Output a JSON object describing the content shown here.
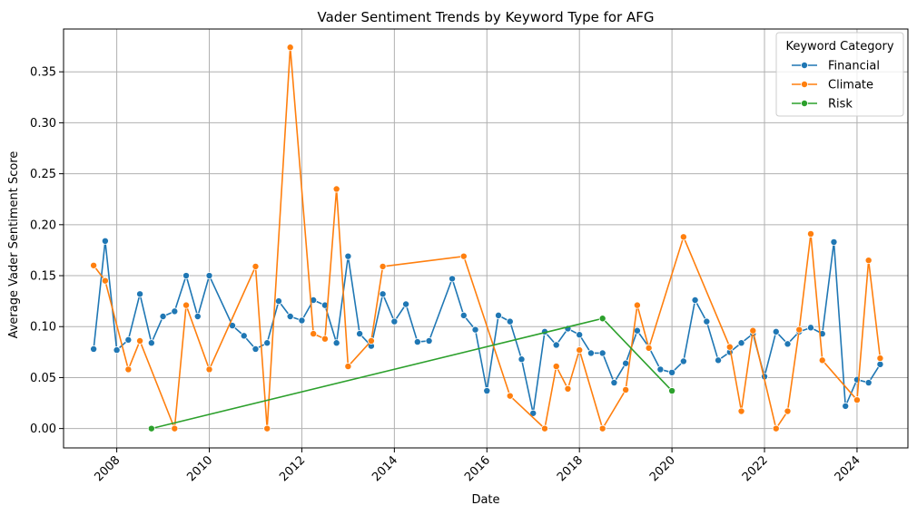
{
  "chart_data": {
    "type": "line",
    "title": "Vader Sentiment Trends by Keyword Type for AFG",
    "xlabel": "Date",
    "ylabel": "Average Vader Sentiment Score",
    "xlim": [
      2006.85,
      2025.1
    ],
    "ylim": [
      -0.019,
      0.392
    ],
    "xticks": [
      2008,
      2010,
      2012,
      2014,
      2016,
      2018,
      2020,
      2022,
      2024
    ],
    "xtick_labels": [
      "2008",
      "2010",
      "2012",
      "2014",
      "2016",
      "2018",
      "2020",
      "2022",
      "2024"
    ],
    "yticks": [
      0.0,
      0.05,
      0.1,
      0.15,
      0.2,
      0.25,
      0.3,
      0.35
    ],
    "ytick_labels": [
      "0.00",
      "0.05",
      "0.10",
      "0.15",
      "0.20",
      "0.25",
      "0.30",
      "0.35"
    ],
    "grid": true,
    "legend": {
      "title": "Keyword Category",
      "placement": "top-right"
    },
    "series": [
      {
        "name": "Financial",
        "color": "#1f77b4",
        "points": [
          [
            2007.5,
            0.078
          ],
          [
            2007.75,
            0.184
          ],
          [
            2008.0,
            0.077
          ],
          [
            2008.25,
            0.087
          ],
          [
            2008.5,
            0.132
          ],
          [
            2008.75,
            0.084
          ],
          [
            2009.0,
            0.11
          ],
          [
            2009.25,
            0.115
          ],
          [
            2009.5,
            0.15
          ],
          [
            2009.75,
            0.11
          ],
          [
            2010.0,
            0.15
          ],
          [
            2010.5,
            0.101
          ],
          [
            2010.75,
            0.091
          ],
          [
            2011.0,
            0.078
          ],
          [
            2011.25,
            0.084
          ],
          [
            2011.5,
            0.125
          ],
          [
            2011.75,
            0.11
          ],
          [
            2012.0,
            0.106
          ],
          [
            2012.25,
            0.126
          ],
          [
            2012.5,
            0.121
          ],
          [
            2012.75,
            0.084
          ],
          [
            2013.0,
            0.169
          ],
          [
            2013.25,
            0.093
          ],
          [
            2013.5,
            0.081
          ],
          [
            2013.75,
            0.132
          ],
          [
            2014.0,
            0.105
          ],
          [
            2014.25,
            0.122
          ],
          [
            2014.5,
            0.085
          ],
          [
            2014.75,
            0.086
          ],
          [
            2015.25,
            0.147
          ],
          [
            2015.5,
            0.111
          ],
          [
            2015.75,
            0.097
          ],
          [
            2016.0,
            0.037
          ],
          [
            2016.25,
            0.111
          ],
          [
            2016.5,
            0.105
          ],
          [
            2016.75,
            0.068
          ],
          [
            2017.0,
            0.015
          ],
          [
            2017.25,
            0.095
          ],
          [
            2017.5,
            0.082
          ],
          [
            2017.75,
            0.098
          ],
          [
            2018.0,
            0.092
          ],
          [
            2018.25,
            0.074
          ],
          [
            2018.5,
            0.074
          ],
          [
            2018.75,
            0.045
          ],
          [
            2019.0,
            0.064
          ],
          [
            2019.25,
            0.096
          ],
          [
            2019.5,
            0.08
          ],
          [
            2019.75,
            0.058
          ],
          [
            2020.0,
            0.055
          ],
          [
            2020.25,
            0.066
          ],
          [
            2020.5,
            0.126
          ],
          [
            2020.75,
            0.105
          ],
          [
            2021.0,
            0.067
          ],
          [
            2021.25,
            0.075
          ],
          [
            2021.5,
            0.084
          ],
          [
            2021.75,
            0.093
          ],
          [
            2022.0,
            0.051
          ],
          [
            2022.25,
            0.095
          ],
          [
            2022.5,
            0.083
          ],
          [
            2022.75,
            0.095
          ],
          [
            2023.0,
            0.099
          ],
          [
            2023.25,
            0.093
          ],
          [
            2023.5,
            0.183
          ],
          [
            2023.75,
            0.022
          ],
          [
            2024.0,
            0.048
          ],
          [
            2024.25,
            0.045
          ],
          [
            2024.5,
            0.063
          ]
        ]
      },
      {
        "name": "Climate",
        "color": "#ff7f0e",
        "points": [
          [
            2007.5,
            0.16
          ],
          [
            2007.75,
            0.145
          ],
          [
            2008.25,
            0.058
          ],
          [
            2008.5,
            0.086
          ],
          [
            2009.25,
            0.0
          ],
          [
            2009.5,
            0.121
          ],
          [
            2010.0,
            0.058
          ],
          [
            2011.0,
            0.159
          ],
          [
            2011.25,
            0.0
          ],
          [
            2011.75,
            0.374
          ],
          [
            2012.25,
            0.093
          ],
          [
            2012.5,
            0.088
          ],
          [
            2012.75,
            0.235
          ],
          [
            2013.0,
            0.061
          ],
          [
            2013.5,
            0.086
          ],
          [
            2013.75,
            0.159
          ],
          [
            2015.5,
            0.169
          ],
          [
            2016.5,
            0.032
          ],
          [
            2017.25,
            0.0
          ],
          [
            2017.5,
            0.061
          ],
          [
            2017.75,
            0.039
          ],
          [
            2018.0,
            0.077
          ],
          [
            2018.5,
            0.0
          ],
          [
            2019.0,
            0.038
          ],
          [
            2019.25,
            0.121
          ],
          [
            2019.5,
            0.079
          ],
          [
            2020.25,
            0.188
          ],
          [
            2021.25,
            0.08
          ],
          [
            2021.5,
            0.017
          ],
          [
            2021.75,
            0.096
          ],
          [
            2022.25,
            0.0
          ],
          [
            2022.5,
            0.017
          ],
          [
            2022.75,
            0.097
          ],
          [
            2023.0,
            0.191
          ],
          [
            2023.25,
            0.067
          ],
          [
            2024.0,
            0.028
          ],
          [
            2024.25,
            0.165
          ],
          [
            2024.5,
            0.069
          ]
        ]
      },
      {
        "name": "Risk",
        "color": "#2ca02c",
        "points": [
          [
            2008.75,
            0.0
          ],
          [
            2018.5,
            0.108
          ],
          [
            2020.0,
            0.037
          ]
        ]
      }
    ]
  }
}
